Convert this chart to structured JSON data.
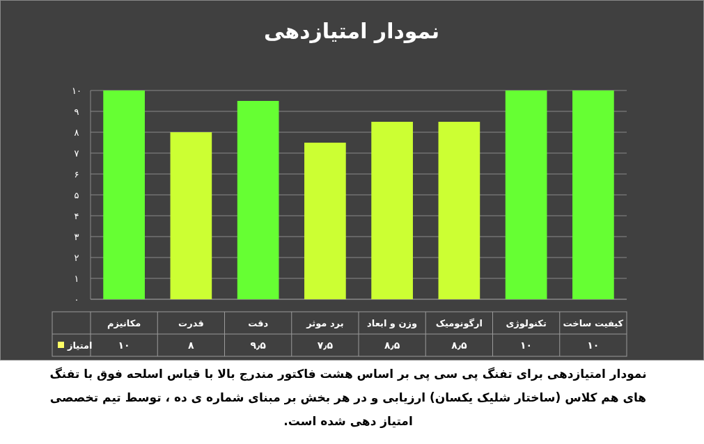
{
  "chart_data": {
    "type": "bar",
    "title": "نمودار امتیازدهی",
    "categories": [
      "مکانیزم",
      "قدرت",
      "دقت",
      "برد موثر",
      "وزن و ابعاد",
      "ارگونومیک",
      "تکنولوژی",
      "کیفیت ساخت"
    ],
    "series": [
      {
        "name": "امتیاز",
        "color": "#ffff66",
        "colors": [
          "#66ff33",
          "#ccff33",
          "#66ff33",
          "#ccff33",
          "#ccff33",
          "#ccff33",
          "#66ff33",
          "#66ff33"
        ],
        "values": [
          10,
          8,
          9.5,
          7.5,
          8.5,
          8.5,
          10,
          10
        ],
        "value_labels": [
          "۱۰",
          "۸",
          "۹٫۵",
          "۷٫۵",
          "۸٫۵",
          "۸٫۵",
          "۱۰",
          "۱۰"
        ]
      }
    ],
    "ylim": [
      0,
      10
    ],
    "yticks": [
      {
        "value": 0,
        "label": "۰"
      },
      {
        "value": 1,
        "label": "۱"
      },
      {
        "value": 2,
        "label": "۲"
      },
      {
        "value": 3,
        "label": "۳"
      },
      {
        "value": 4,
        "label": "۴"
      },
      {
        "value": 5,
        "label": "۵"
      },
      {
        "value": 6,
        "label": "۶"
      },
      {
        "value": 7,
        "label": "۷"
      },
      {
        "value": 8,
        "label": "۸"
      },
      {
        "value": 9,
        "label": "۹"
      },
      {
        "value": 10,
        "label": "۱۰"
      }
    ],
    "grid": "y",
    "legend": "bottom",
    "annotations": [
      "نمودار امتیازدهی برای تفنگ پی سی پی بر اساس هشت فاکتور مندرج بالا با قیاس اسلحه فوق با تفنگ های هم کلاس (ساختار شلیک یکسان) ارزیابی و در هر بخش بر مبنای شماره ی ده ، توسط تیم تخصصی امتیاز دهی شده است."
    ]
  }
}
